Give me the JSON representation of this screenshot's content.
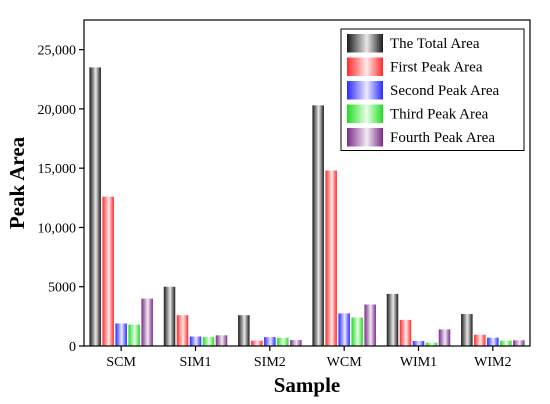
{
  "chart_data": {
    "type": "bar",
    "xlabel": "Sample",
    "ylabel": "Peak Area",
    "ylim": [
      0,
      27500
    ],
    "yticks": [
      0,
      5000,
      10000,
      15000,
      20000,
      25000
    ],
    "ytick_labels": [
      "0",
      "5000",
      "10,000",
      "15,000",
      "20,000",
      "25,000"
    ],
    "categories": [
      "SCM",
      "SIM1",
      "SIM2",
      "WCM",
      "WIM1",
      "WIM2"
    ],
    "series": [
      {
        "name": "The Total Area",
        "color": "#1a1a1a",
        "values": [
          23500,
          5000,
          2600,
          20300,
          4400,
          2700
        ]
      },
      {
        "name": "First Peak Area",
        "color": "#ff2a2a",
        "values": [
          12600,
          2600,
          450,
          14800,
          2200,
          950
        ]
      },
      {
        "name": "Second Peak Area",
        "color": "#2a2aff",
        "values": [
          1900,
          800,
          750,
          2750,
          420,
          700
        ]
      },
      {
        "name": "Third Peak Area",
        "color": "#22dd22",
        "values": [
          1800,
          750,
          700,
          2400,
          280,
          450
        ]
      },
      {
        "name": "Fourth Peak Area",
        "color": "#7a2a8a",
        "values": [
          4000,
          900,
          500,
          3500,
          1400,
          480
        ]
      }
    ],
    "grid": false,
    "legend_position": "top-right"
  }
}
